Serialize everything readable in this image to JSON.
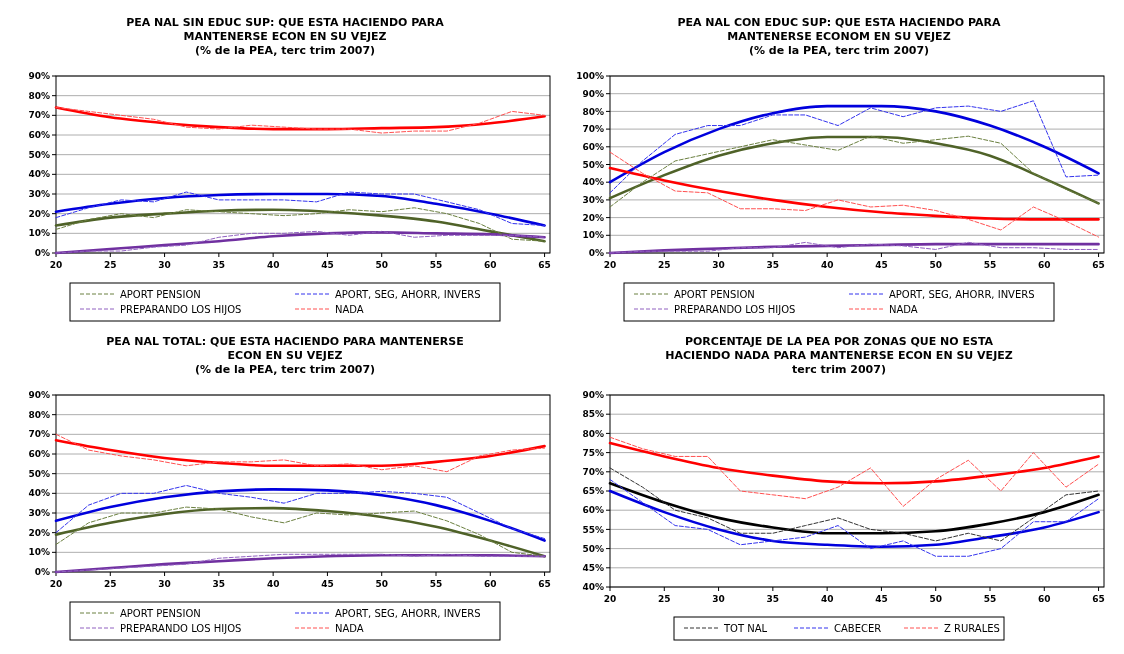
{
  "chart_data": [
    {
      "type": "line",
      "title": "PEA NAL SIN EDUC SUP: QUE ESTA HACIENDO PARA MANTENERSE ECON EN SU VEJEZ",
      "subtitle": "(% de la PEA, terc trim 2007)",
      "xlim": [
        20,
        65.5
      ],
      "xticks": [
        20,
        25,
        30,
        35,
        40,
        45,
        50,
        55,
        60,
        65
      ],
      "ylim": [
        0,
        90
      ],
      "yticks": [
        {
          "value": 0,
          "label": "0%"
        },
        {
          "value": 10,
          "label": "10%"
        },
        {
          "value": 20,
          "label": "20%"
        },
        {
          "value": 30,
          "label": "30%"
        },
        {
          "value": 40,
          "label": "40%"
        },
        {
          "value": 50,
          "label": "50%"
        },
        {
          "value": 60,
          "label": "60%"
        },
        {
          "value": 70,
          "label": "70%"
        },
        {
          "value": 80,
          "label": "80%"
        },
        {
          "value": 90,
          "label": "90%"
        }
      ],
      "grid": "y",
      "legend": "bottom",
      "series": [
        {
          "name": "APORT PENSION",
          "color": "#6b8040",
          "line_style": "dashed",
          "x": [
            20,
            23,
            26,
            29,
            32,
            35,
            38,
            41,
            44,
            47,
            50,
            53,
            56,
            59,
            62,
            65
          ],
          "values": [
            12,
            17,
            20,
            18,
            22,
            21,
            20,
            19,
            20,
            22,
            21,
            23,
            20,
            15,
            7,
            6
          ]
        },
        {
          "name": "APORT, SEG, AHORR, INVERS",
          "color": "#3333ee",
          "line_style": "dashed",
          "x": [
            20,
            23,
            26,
            29,
            32,
            35,
            38,
            41,
            44,
            47,
            50,
            53,
            56,
            59,
            62,
            65
          ],
          "values": [
            18,
            23,
            27,
            26,
            31,
            27,
            27,
            27,
            26,
            31,
            30,
            30,
            26,
            22,
            15,
            14
          ]
        },
        {
          "name": "PREPARANDO LOS HIJOS",
          "color": "#9060c0",
          "line_style": "dashed",
          "x": [
            20,
            23,
            26,
            29,
            32,
            35,
            38,
            41,
            44,
            47,
            50,
            53,
            56,
            59,
            62,
            65
          ],
          "values": [
            0,
            1,
            1,
            3,
            4,
            8,
            10,
            10,
            11,
            9,
            11,
            8,
            9,
            9,
            9,
            8
          ]
        },
        {
          "name": "NADA",
          "color": "#ff5050",
          "line_style": "dashed",
          "x": [
            20,
            23,
            26,
            29,
            32,
            35,
            38,
            41,
            44,
            47,
            50,
            53,
            56,
            59,
            62,
            65
          ],
          "values": [
            74,
            72,
            70,
            68,
            64,
            63,
            65,
            64,
            63,
            63,
            61,
            62,
            62,
            66,
            72,
            70
          ]
        },
        {
          "color": "#4f6228",
          "line_style": "solid",
          "x": [
            20,
            25,
            30,
            35,
            40,
            45,
            50,
            55,
            60,
            65
          ],
          "values": [
            14,
            18,
            20,
            21.5,
            22,
            21,
            19,
            16,
            11,
            6
          ]
        },
        {
          "color": "#0000dd",
          "line_style": "solid",
          "x": [
            20,
            25,
            30,
            35,
            40,
            45,
            50,
            55,
            60,
            65
          ],
          "values": [
            21,
            25,
            28,
            29.5,
            30,
            30,
            29,
            25,
            20,
            14
          ]
        },
        {
          "color": "#7030a0",
          "line_style": "solid",
          "x": [
            20,
            25,
            30,
            35,
            40,
            45,
            50,
            55,
            60,
            65
          ],
          "values": [
            0,
            2,
            4,
            6,
            8.5,
            10,
            10.5,
            10,
            9.5,
            8
          ]
        },
        {
          "color": "#ff0000",
          "line_style": "solid",
          "x": [
            20,
            25,
            30,
            35,
            40,
            45,
            50,
            55,
            60,
            65
          ],
          "values": [
            74,
            69,
            66,
            64,
            63,
            63,
            63.5,
            64,
            66,
            69.5
          ]
        }
      ]
    },
    {
      "type": "line",
      "title": "PEA NAL CON EDUC SUP: QUE ESTA HACIENDO PARA MANTENERSE ECONOM EN SU VEJEZ",
      "subtitle": "(% de la PEA, terc trim 2007)",
      "xlim": [
        20,
        65.5
      ],
      "xticks": [
        20,
        25,
        30,
        35,
        40,
        45,
        50,
        55,
        60,
        65
      ],
      "ylim": [
        0,
        100
      ],
      "yticks": [
        {
          "value": 0,
          "label": "0%"
        },
        {
          "value": 10,
          "label": "10%"
        },
        {
          "value": 20,
          "label": "20%"
        },
        {
          "value": 30,
          "label": "30%"
        },
        {
          "value": 40,
          "label": "40%"
        },
        {
          "value": 50,
          "label": "50%"
        },
        {
          "value": 60,
          "label": "60%"
        },
        {
          "value": 70,
          "label": "70%"
        },
        {
          "value": 80,
          "label": "80%"
        },
        {
          "value": 90,
          "label": "90%"
        },
        {
          "value": 100,
          "label": "100%"
        }
      ],
      "grid": "y",
      "legend": "bottom",
      "series": [
        {
          "name": "APORT PENSION",
          "color": "#6b8040",
          "line_style": "dashed",
          "x": [
            20,
            23,
            26,
            29,
            32,
            35,
            38,
            41,
            44,
            47,
            50,
            53,
            56,
            59,
            62,
            65
          ],
          "values": [
            26,
            40,
            52,
            56,
            60,
            64,
            61,
            58,
            66,
            62,
            64,
            66,
            62,
            45,
            36,
            28
          ]
        },
        {
          "name": "APORT, SEG, AHORR, INVERS",
          "color": "#3333ee",
          "line_style": "dashed",
          "x": [
            20,
            23,
            26,
            29,
            32,
            35,
            38,
            41,
            44,
            47,
            50,
            53,
            56,
            59,
            62,
            65
          ],
          "values": [
            34,
            52,
            67,
            72,
            72,
            78,
            78,
            72,
            82,
            77,
            82,
            83,
            80,
            86,
            43,
            44
          ]
        },
        {
          "name": "PREPARANDO LOS HIJOS",
          "color": "#9060c0",
          "line_style": "dashed",
          "x": [
            20,
            23,
            26,
            29,
            32,
            35,
            38,
            41,
            44,
            47,
            50,
            53,
            56,
            59,
            62,
            65
          ],
          "values": [
            0,
            1,
            1,
            1,
            3,
            3,
            6,
            3,
            5,
            4,
            2,
            6,
            3,
            3,
            2,
            2
          ]
        },
        {
          "name": "NADA",
          "color": "#ff5050",
          "line_style": "dashed",
          "x": [
            20,
            23,
            26,
            29,
            32,
            35,
            38,
            41,
            44,
            47,
            50,
            53,
            56,
            59,
            62,
            65
          ],
          "values": [
            57,
            45,
            35,
            34,
            25,
            25,
            24,
            30,
            26,
            27,
            24,
            19,
            13,
            26,
            18,
            9
          ]
        },
        {
          "color": "#4f6228",
          "line_style": "solid",
          "x": [
            20,
            25,
            30,
            35,
            40,
            45,
            50,
            55,
            60,
            65
          ],
          "values": [
            31,
            44,
            55,
            62,
            65.5,
            65.5,
            62,
            55,
            42,
            28
          ]
        },
        {
          "color": "#0000dd",
          "line_style": "solid",
          "x": [
            20,
            25,
            30,
            35,
            40,
            45,
            50,
            55,
            60,
            65
          ],
          "values": [
            40,
            57,
            70,
            79,
            83,
            83,
            80,
            72,
            60,
            45
          ]
        },
        {
          "color": "#7030a0",
          "line_style": "solid",
          "x": [
            20,
            25,
            30,
            35,
            40,
            45,
            50,
            55,
            60,
            65
          ],
          "values": [
            0,
            1.5,
            2.5,
            3.5,
            4,
            4.5,
            5,
            5,
            5,
            5
          ]
        },
        {
          "color": "#ff0000",
          "line_style": "solid",
          "x": [
            20,
            25,
            30,
            35,
            40,
            45,
            50,
            55,
            60,
            65
          ],
          "values": [
            48,
            41,
            35,
            30,
            26,
            23,
            21,
            19.5,
            19,
            19
          ]
        }
      ]
    },
    {
      "type": "line",
      "title": "PEA NAL TOTAL: QUE ESTA HACIENDO PARA MANTENERSE ECON EN SU VEJEZ",
      "subtitle": "(% de la PEA, terc trim 2007)",
      "xlim": [
        20,
        65.5
      ],
      "xticks": [
        20,
        25,
        30,
        35,
        40,
        45,
        50,
        55,
        60,
        65
      ],
      "ylim": [
        0,
        90
      ],
      "yticks": [
        {
          "value": 0,
          "label": "0%"
        },
        {
          "value": 10,
          "label": "10%"
        },
        {
          "value": 20,
          "label": "20%"
        },
        {
          "value": 30,
          "label": "30%"
        },
        {
          "value": 40,
          "label": "40%"
        },
        {
          "value": 50,
          "label": "50%"
        },
        {
          "value": 60,
          "label": "60%"
        },
        {
          "value": 70,
          "label": "70%"
        },
        {
          "value": 80,
          "label": "80%"
        },
        {
          "value": 90,
          "label": "90%"
        }
      ],
      "grid": "y",
      "legend": "bottom",
      "series": [
        {
          "name": "APORT PENSION",
          "color": "#6b8040",
          "line_style": "dashed",
          "x": [
            20,
            23,
            26,
            29,
            32,
            35,
            38,
            41,
            44,
            47,
            50,
            53,
            56,
            59,
            62,
            65
          ],
          "values": [
            14,
            25,
            30,
            30,
            33,
            32,
            28,
            25,
            30,
            29,
            30,
            31,
            26,
            19,
            10,
            8
          ]
        },
        {
          "name": "APORT, SEG, AHORR, INVERS",
          "color": "#3333ee",
          "line_style": "dashed",
          "x": [
            20,
            23,
            26,
            29,
            32,
            35,
            38,
            41,
            44,
            47,
            50,
            53,
            56,
            59,
            62,
            65
          ],
          "values": [
            20,
            34,
            40,
            40,
            44,
            40,
            38,
            35,
            40,
            40,
            41,
            40,
            38,
            30,
            22,
            17
          ]
        },
        {
          "name": "PREPARANDO LOS HIJOS",
          "color": "#9060c0",
          "line_style": "dashed",
          "x": [
            20,
            23,
            26,
            29,
            32,
            35,
            38,
            41,
            44,
            47,
            50,
            53,
            56,
            59,
            62,
            65
          ],
          "values": [
            0,
            1,
            2,
            3,
            4,
            7,
            8,
            9,
            9,
            9,
            9,
            8,
            9,
            8,
            8,
            8
          ]
        },
        {
          "name": "NADA",
          "color": "#ff5050",
          "line_style": "dashed",
          "x": [
            20,
            23,
            26,
            29,
            32,
            35,
            38,
            41,
            44,
            47,
            50,
            53,
            56,
            59,
            62,
            65
          ],
          "values": [
            70,
            62,
            59,
            57,
            54,
            56,
            56,
            57,
            54,
            55,
            52,
            54,
            51,
            59,
            62,
            63
          ]
        },
        {
          "color": "#4f6228",
          "line_style": "solid",
          "x": [
            20,
            25,
            30,
            35,
            40,
            45,
            50,
            55,
            60,
            65
          ],
          "values": [
            19,
            25,
            29.5,
            32,
            32.5,
            31,
            28,
            23,
            16,
            8
          ]
        },
        {
          "color": "#0000dd",
          "line_style": "solid",
          "x": [
            20,
            25,
            30,
            35,
            40,
            45,
            50,
            55,
            60,
            65
          ],
          "values": [
            26,
            33,
            38,
            41,
            42,
            41.5,
            39,
            34,
            26,
            16
          ]
        },
        {
          "color": "#7030a0",
          "line_style": "solid",
          "x": [
            20,
            25,
            30,
            35,
            40,
            45,
            50,
            55,
            60,
            65
          ],
          "values": [
            0,
            2,
            4,
            5.5,
            7,
            8,
            8.5,
            8.5,
            8.5,
            8
          ]
        },
        {
          "color": "#ff0000",
          "line_style": "solid",
          "x": [
            20,
            25,
            30,
            35,
            40,
            45,
            50,
            55,
            60,
            65
          ],
          "values": [
            67,
            62,
            58,
            55.5,
            54,
            54,
            54,
            56,
            59,
            64
          ]
        }
      ]
    },
    {
      "type": "line",
      "title": "PORCENTAJE DE LA PEA POR ZONAS  QUE NO ESTA HACIENDO  NADA PARA MANTENERSE ECON EN SU VEJEZ",
      "subtitle": "terc trim 2007)",
      "xlim": [
        20,
        65.5
      ],
      "xticks": [
        20,
        25,
        30,
        35,
        40,
        45,
        50,
        55,
        60,
        65
      ],
      "ylim": [
        40,
        90
      ],
      "yticks": [
        {
          "value": 40,
          "label": "40%"
        },
        {
          "value": 45,
          "label": "45%"
        },
        {
          "value": 50,
          "label": "50%"
        },
        {
          "value": 55,
          "label": "55%"
        },
        {
          "value": 60,
          "label": "60%"
        },
        {
          "value": 65,
          "label": "65%"
        },
        {
          "value": 70,
          "label": "70%"
        },
        {
          "value": 75,
          "label": "75%"
        },
        {
          "value": 80,
          "label": "80%"
        },
        {
          "value": 85,
          "label": "85%"
        },
        {
          "value": 90,
          "label": "90%"
        }
      ],
      "grid": "y",
      "legend": "bottom",
      "series": [
        {
          "name": "TOT NAL",
          "color": "#333333",
          "line_style": "dashed",
          "x": [
            20,
            23,
            26,
            29,
            32,
            35,
            38,
            41,
            44,
            47,
            50,
            53,
            56,
            59,
            62,
            65
          ],
          "values": [
            71,
            66,
            60,
            58,
            54,
            54,
            56,
            58,
            55,
            54,
            52,
            54,
            52,
            58,
            64,
            65
          ]
        },
        {
          "name": "CABECER",
          "color": "#3333ee",
          "line_style": "dashed",
          "x": [
            20,
            23,
            26,
            29,
            32,
            35,
            38,
            41,
            44,
            47,
            50,
            53,
            56,
            59,
            62,
            65
          ],
          "values": [
            68,
            62,
            56,
            55,
            51,
            52,
            53,
            56,
            50,
            52,
            48,
            48,
            50,
            57,
            57,
            63
          ]
        },
        {
          "name": "Z RURALES",
          "color": "#ff5050",
          "line_style": "dashed",
          "x": [
            20,
            23,
            26,
            29,
            32,
            35,
            38,
            41,
            44,
            47,
            50,
            53,
            56,
            59,
            62,
            65
          ],
          "values": [
            79,
            76,
            74,
            74,
            65,
            64,
            63,
            66,
            71,
            61,
            68,
            73,
            65,
            75,
            66,
            72
          ]
        },
        {
          "color": "#000000",
          "line_style": "solid",
          "x": [
            20,
            25,
            30,
            35,
            40,
            45,
            50,
            55,
            60,
            65
          ],
          "values": [
            67,
            62,
            58,
            55.5,
            54,
            54,
            54.5,
            56.5,
            59.5,
            64
          ]
        },
        {
          "color": "#0000dd",
          "line_style": "solid",
          "x": [
            20,
            25,
            30,
            35,
            40,
            45,
            50,
            55,
            60,
            65
          ],
          "values": [
            65,
            59.5,
            55,
            52,
            51,
            50.5,
            51,
            53,
            55.5,
            59.5
          ]
        },
        {
          "color": "#ff0000",
          "line_style": "solid",
          "x": [
            20,
            25,
            30,
            35,
            40,
            45,
            50,
            55,
            60,
            65
          ],
          "values": [
            77.5,
            74,
            71,
            69,
            67.5,
            67,
            67.5,
            69,
            71,
            74
          ]
        }
      ]
    }
  ]
}
